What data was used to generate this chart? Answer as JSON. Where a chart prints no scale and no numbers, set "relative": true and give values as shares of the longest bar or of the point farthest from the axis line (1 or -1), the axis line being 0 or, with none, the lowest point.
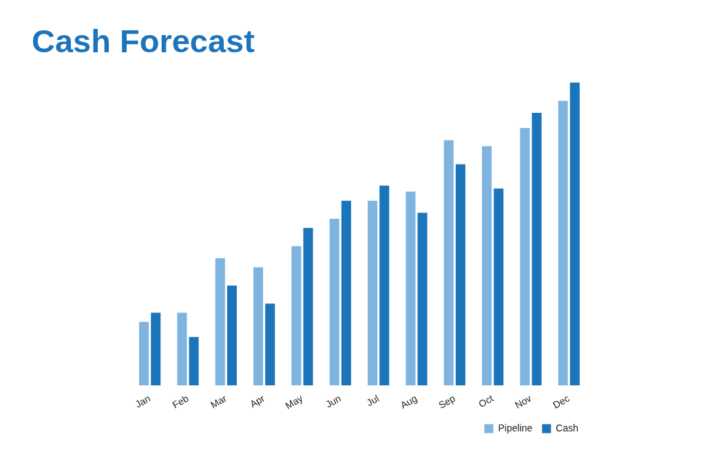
{
  "chart_data": {
    "type": "bar",
    "title": "Cash Forecast",
    "categories": [
      "Jan",
      "Feb",
      "Mar",
      "Apr",
      "May",
      "Jun",
      "Jul",
      "Aug",
      "Sep",
      "Oct",
      "Nov",
      "Dec"
    ],
    "series": [
      {
        "name": "Pipeline",
        "color": "#7fb4e0",
        "values": [
          0.21,
          0.24,
          0.42,
          0.39,
          0.46,
          0.55,
          0.61,
          0.64,
          0.81,
          0.79,
          0.85,
          0.94
        ]
      },
      {
        "name": "Cash",
        "color": "#1b75bb",
        "values": [
          0.24,
          0.16,
          0.33,
          0.27,
          0.52,
          0.61,
          0.66,
          0.57,
          0.73,
          0.65,
          0.9,
          1
        ]
      }
    ],
    "relative": true,
    "legend": "bottom right"
  }
}
